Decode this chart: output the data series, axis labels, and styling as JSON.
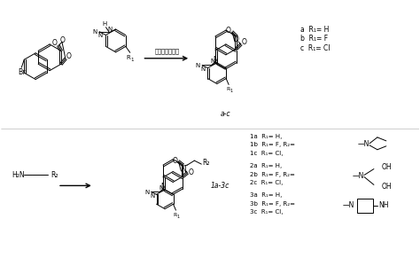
{
  "background_color": "#ffffff",
  "fig_width": 4.74,
  "fig_height": 2.91,
  "dpi": 100,
  "reagents_top": "碗化链，碳酸钾",
  "label_ac": "a-c",
  "label_1a3c": "1a-3c",
  "reactant_bottom": "H₂N",
  "ann_top": [
    "a  R₁= H",
    "b  R₁= F",
    "c  R₁= Cl"
  ],
  "ann_bottom_1": [
    "1a  R₁= H,",
    "1b  R₁= F, R₂=",
    "1c  R₁= Cl,"
  ],
  "ann_bottom_2": [
    "2a  R₁= H,",
    "2b  R₁= F, R₂=",
    "2c  R₁= Cl,"
  ],
  "ann_bottom_3": [
    "3a  R₁= H,",
    "3b  R₁= F, R₂=",
    "3c  R₁= Cl,"
  ]
}
